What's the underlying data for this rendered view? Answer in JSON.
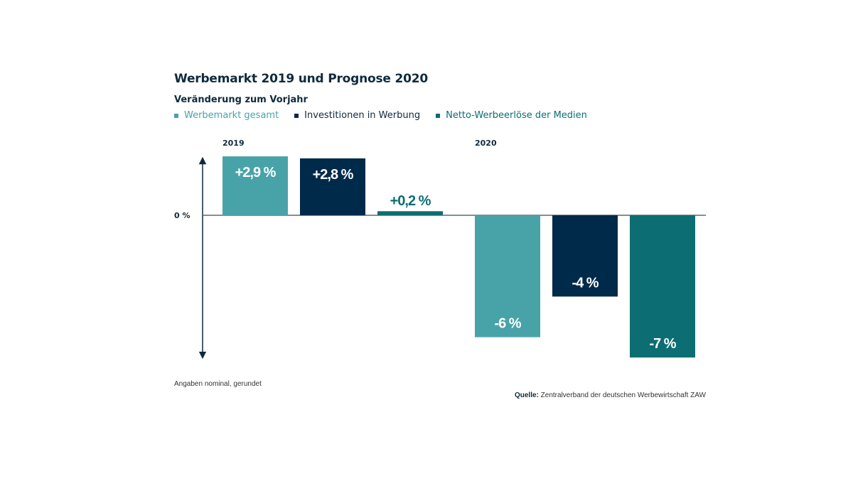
{
  "chart_data": {
    "type": "bar",
    "title": "Werbemarkt 2019 und Prognose 2020",
    "subtitle": "Veränderung zum Vorjahr",
    "xlabel": "",
    "ylabel": "",
    "zero_label": "0 %",
    "groups": [
      "2019",
      "2020"
    ],
    "series": [
      {
        "name": "Werbemarkt gesamt",
        "color": "#48a3a8",
        "values": [
          2.9,
          -6
        ],
        "labels": [
          "+2,9 %",
          "-6 %"
        ]
      },
      {
        "name": "Investitionen in Werbung",
        "color": "#002a4a",
        "values": [
          2.8,
          -4
        ],
        "labels": [
          "+2,8 %",
          "-4 %"
        ]
      },
      {
        "name": "Netto-Werbeerlöse der Medien",
        "color": "#0c6e72",
        "values": [
          0.2,
          -7
        ],
        "labels": [
          "+0,2 %",
          "-7 %"
        ]
      }
    ],
    "ylim": [
      -7,
      2.9
    ],
    "grid": false,
    "legend_position": "top-left"
  },
  "footer": {
    "note": "Angaben nominal, gerundet",
    "source_label": "Quelle:",
    "source_text": " Zentralverband der deutschen Werbewirtschaft ZAW"
  },
  "colors": {
    "text_dark": "#0f2a3d",
    "axis": "#5a6a75"
  }
}
